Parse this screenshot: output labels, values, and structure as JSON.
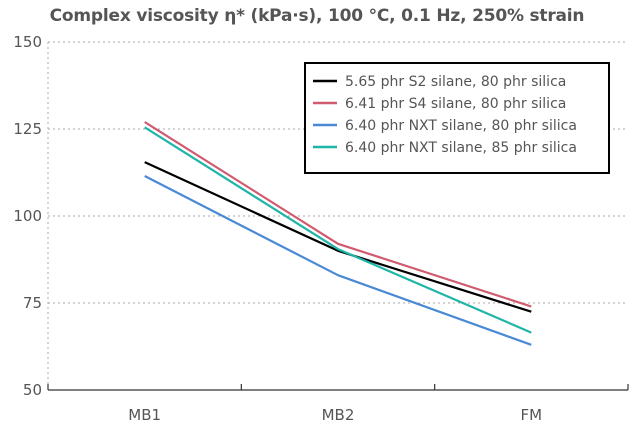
{
  "chart_data": {
    "type": "line",
    "title": "Complex viscosity η* (kPa·s), 100 °C, 0.1 Hz, 250% strain",
    "categories": [
      "MB1",
      "MB2",
      "FM"
    ],
    "ylim": [
      50,
      150
    ],
    "yticks": [
      50,
      75,
      100,
      125,
      150
    ],
    "grid": "horizontal-dotted",
    "legend_position": "top-right",
    "series": [
      {
        "name": "5.65 phr S2 silane, 80 phr silica",
        "color": "#000000",
        "values": [
          115.5,
          90.0,
          72.5
        ]
      },
      {
        "name": "6.41 phr S4 silane, 80 phr silica",
        "color": "#d05a6e",
        "values": [
          127.0,
          92.0,
          74.0
        ]
      },
      {
        "name": "6.40 phr NXT silane, 80 phr silica",
        "color": "#4a8ad4",
        "values": [
          111.5,
          83.0,
          63.0
        ]
      },
      {
        "name": "6.40 phr NXT silane, 85 phr silica",
        "color": "#1fb5a8",
        "values": [
          125.5,
          90.5,
          66.5
        ]
      }
    ]
  }
}
